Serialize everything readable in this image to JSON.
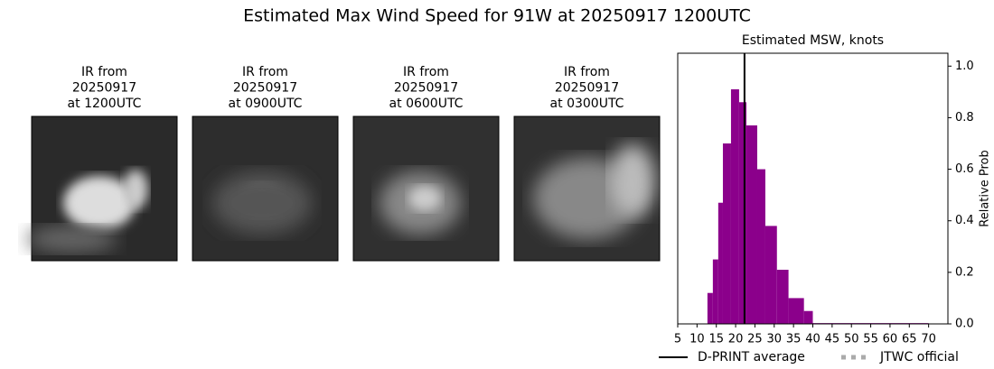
{
  "title": "Estimated Max Wind Speed for 91W at 20250917 1200UTC",
  "panels": [
    {
      "lines": [
        "IR from",
        "20250917",
        "at 1200UTC"
      ]
    },
    {
      "lines": [
        "IR from",
        "20250917",
        "at 0900UTC"
      ]
    },
    {
      "lines": [
        "IR from",
        "20250917",
        "at 0600UTC"
      ]
    },
    {
      "lines": [
        "IR from",
        "20250917",
        "at 0300UTC"
      ]
    }
  ],
  "chart_data": {
    "type": "histogram",
    "title": "Estimated MSW, knots",
    "y_label": "Relative Prob",
    "bins": [
      12.7,
      14.1,
      15.5,
      16.7,
      18.8,
      20.9,
      22.8,
      25.6,
      27.7,
      30.7,
      33.7,
      37.7,
      40,
      70
    ],
    "counts": [
      0.12,
      0.25,
      0.47,
      0.7,
      0.91,
      0.86,
      0.77,
      0.6,
      0.38,
      0.21,
      0.1,
      0.05,
      0.003
    ],
    "color": "#8b008b",
    "dprint_average": 22.3,
    "xlim": [
      5,
      75
    ],
    "xticks": [
      5,
      10,
      15,
      20,
      25,
      30,
      35,
      40,
      45,
      50,
      55,
      60,
      65,
      70
    ],
    "ylim": [
      0,
      1.05
    ],
    "yticks": [
      {
        "value": 0,
        "label": "0.0"
      },
      0.2,
      0.4,
      0.6,
      0.8,
      {
        "value": 1,
        "label": "1.0"
      }
    ],
    "legend": [
      "D-PRINT average",
      "JTWC official"
    ]
  }
}
